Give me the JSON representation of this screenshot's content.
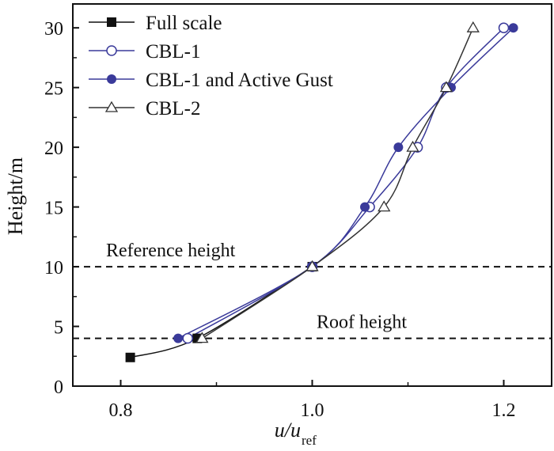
{
  "chart_data": {
    "type": "line",
    "title": "",
    "xlabel": "u/u",
    "xlabel_sub": "ref",
    "ylabel": "Height/m",
    "xlim": [
      0.75,
      1.25
    ],
    "ylim": [
      0,
      32
    ],
    "xticks": [
      0.8,
      1.0,
      1.2
    ],
    "xtick_labels": [
      "0.8",
      "1.0",
      "1.2"
    ],
    "yticks": [
      0,
      5,
      10,
      15,
      20,
      25,
      30
    ],
    "ytick_labels": [
      "0",
      "5",
      "10",
      "15",
      "20",
      "25",
      "30"
    ],
    "grid": false,
    "legend_position": "top-left",
    "reference_lines": [
      {
        "y": 10,
        "label": "Reference height"
      },
      {
        "y": 4,
        "label": "Roof height"
      }
    ],
    "series": [
      {
        "name": "Full scale",
        "color": "#111111",
        "marker": "square-filled",
        "x": [
          0.81,
          0.88,
          1.0
        ],
        "y": [
          2.4,
          4,
          10
        ]
      },
      {
        "name": "CBL-1",
        "color": "#3a3a9a",
        "marker": "circle-open",
        "x": [
          0.87,
          1.0,
          1.06,
          1.11,
          1.14,
          1.2
        ],
        "y": [
          4,
          10,
          15,
          20,
          25,
          30
        ]
      },
      {
        "name": "CBL-1 and Active Gust",
        "color": "#3a3a9a",
        "marker": "circle-filled",
        "x": [
          0.86,
          1.0,
          1.055,
          1.09,
          1.145,
          1.21
        ],
        "y": [
          4,
          10,
          15,
          20,
          25,
          30
        ]
      },
      {
        "name": "CBL-2",
        "color": "#333333",
        "marker": "triangle-open",
        "x": [
          0.885,
          1.0,
          1.075,
          1.105,
          1.14,
          1.168
        ],
        "y": [
          4,
          10,
          15,
          20,
          25,
          30
        ]
      }
    ]
  }
}
